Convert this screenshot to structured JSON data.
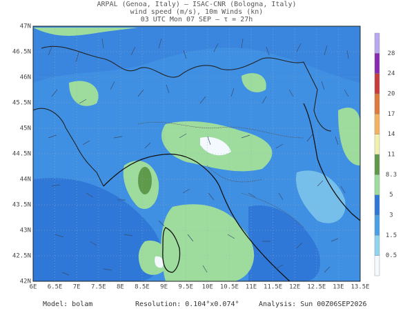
{
  "header": {
    "line1": "ARPAL (Genoa, Italy)  —  ISAC-CNR (Bologna, Italy)",
    "line2": "wind speed (m/s), 10m Winds (kn)",
    "line3": "03 UTC Mon 07 SEP  —  τ = 27h"
  },
  "map": {
    "lat_labels": [
      "47N",
      "46.5N",
      "46N",
      "45.5N",
      "45N",
      "44.5N",
      "44N",
      "43.5N",
      "43N",
      "42.5N",
      "42N"
    ],
    "lon_labels": [
      "6E",
      "6.5E",
      "7E",
      "7.5E",
      "8E",
      "8.5E",
      "9E",
      "9.5E",
      "10E",
      "10.5E",
      "11E",
      "11.5E",
      "12E",
      "12.5E",
      "13E",
      "13.5E"
    ]
  },
  "colorbar": {
    "labels": [
      "0.5",
      "1.5",
      "3",
      "5",
      "8.3",
      "11",
      "14",
      "17",
      "20",
      "24",
      "28"
    ],
    "colors": [
      "#f4f8ff",
      "#8fd3f0",
      "#4aa0e6",
      "#2f78d8",
      "#9edc9e",
      "#5e9a4a",
      "#f2f0b0",
      "#f2b460",
      "#e07a3c",
      "#c83c3c",
      "#8a2ab0",
      "#b8a8f0"
    ]
  },
  "footer": {
    "model": "Model: bolam",
    "resolution": "Resolution: 0.104°x0.074°",
    "analysis": "Analysis: Sun 00Z06SEP2026"
  }
}
